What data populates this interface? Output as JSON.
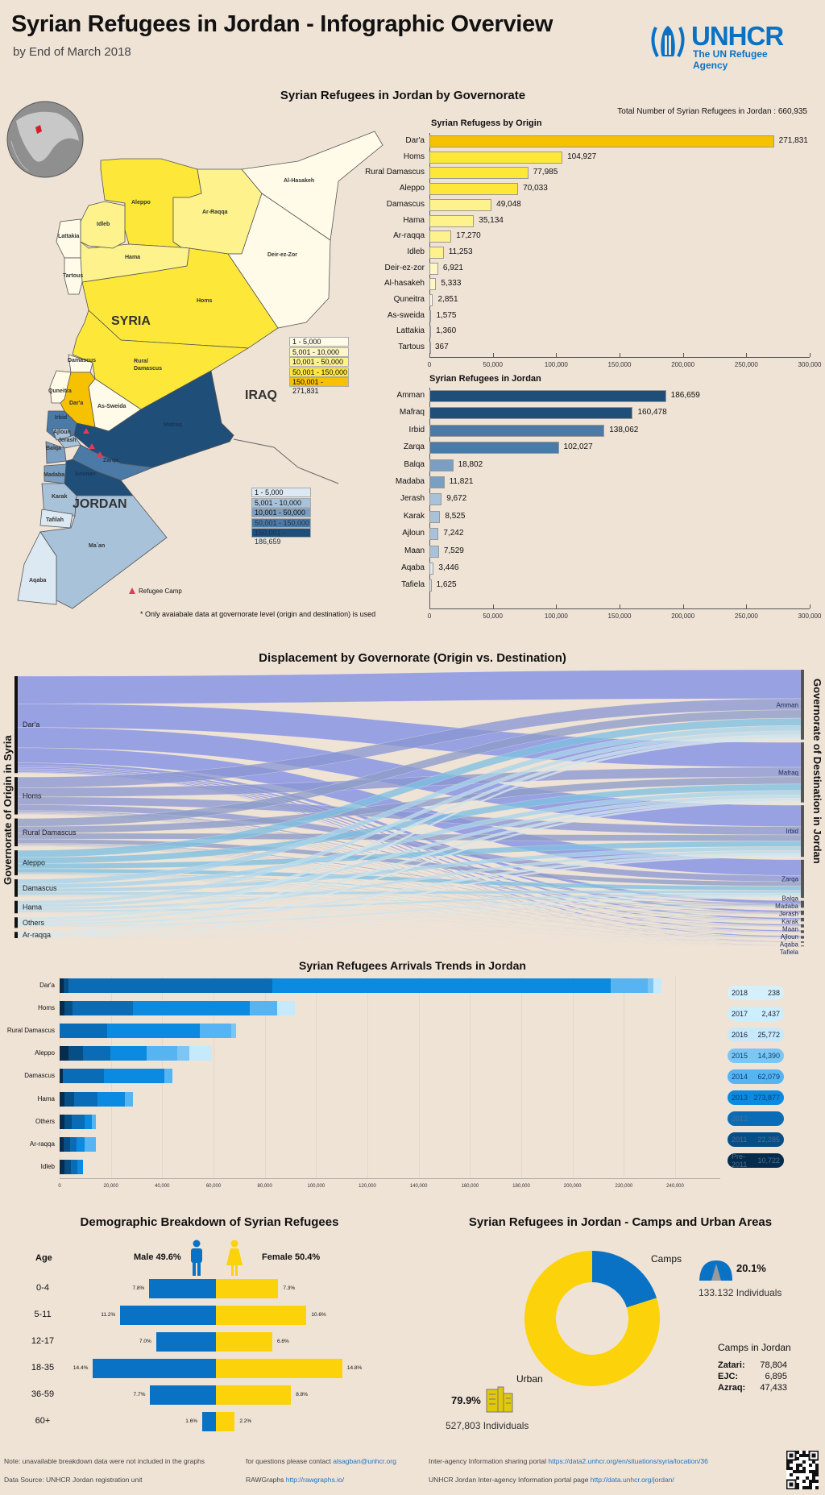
{
  "header": {
    "title": "Syrian Refugees in Jordan - Infographic Overview",
    "subtitle": "by End of March 2018"
  },
  "logo": {
    "name": "UNHCR",
    "tagline": "The UN Refugee Agency"
  },
  "governorate_section": {
    "title": "Syrian Refugees in Jordan by Governorate",
    "total_label": "Total Number of Syrian Refugees in Jordan : 660,935"
  },
  "map": {
    "labels": {
      "alhasakeh": "Al-Hasakeh",
      "aleppo": "Aleppo",
      "arraqqa": "Ar-Raqqa",
      "idleb": "Idleb",
      "lattakia": "Lattakia",
      "hama": "Hama",
      "tartous": "Tartous",
      "deir": "Deir-ez-Zor",
      "homs": "Homs",
      "syria": "SYRIA",
      "damascus": "Damascus",
      "rural1": "Rural",
      "rural2": "Damascus",
      "quneitra": "Quneitra",
      "dara": "Dar'a",
      "sweida": "As-Sweida",
      "iraq": "IRAQ",
      "mafraq": "Mafraq",
      "irbid": "Irbid",
      "ajloun": "Ajloun",
      "jerash": "Jerash",
      "balqa": "Balqa",
      "zarqa": "Zarqa",
      "madaba": "Madaba",
      "amman": "Amman",
      "karak": "Karak",
      "jordan": "JORDAN",
      "tafilah": "Tafilah",
      "maan": "Ma`an",
      "aqaba": "Aqaba"
    },
    "syria_legend": [
      {
        "label": "1 - 5,000",
        "color": "#fffbe8"
      },
      {
        "label": "5,001 - 10,000",
        "color": "#fef6c4"
      },
      {
        "label": "10,001 - 50,000",
        "color": "#fdf28c"
      },
      {
        "label": "50,001 - 150,000",
        "color": "#fde83a"
      },
      {
        "label": "150,001 - 271,831",
        "color": "#f6c200"
      }
    ],
    "jordan_legend": [
      {
        "label": "1 - 5,000",
        "color": "#dce8f2"
      },
      {
        "label": "5,001 - 10,000",
        "color": "#a8c2da"
      },
      {
        "label": "10,001 - 50,000",
        "color": "#7a9fc2"
      },
      {
        "label": "50,001 - 150,000",
        "color": "#4a7aa5"
      },
      {
        "label": "150,001 - 186,659",
        "color": "#1f4e79"
      }
    ],
    "camp_legend": "Refugee Camp",
    "camp_icon": "tent-icon",
    "footnote": "* Only avaiabale data at governorate level (origin and destination) is used"
  },
  "chart_data": [
    {
      "id": "origin",
      "type": "bar",
      "orientation": "horizontal",
      "title": "Syrian Refugess by Origin",
      "xlim": [
        0,
        300000
      ],
      "xticks": [
        0,
        50000,
        100000,
        150000,
        200000,
        250000,
        300000
      ],
      "categories": [
        "Dar'a",
        "Homs",
        "Rural Damascus",
        "Aleppo",
        "Damascus",
        "Hama",
        "Ar-raqqa",
        "Idleb",
        "Deir-ez-zor",
        "Al-hasakeh",
        "Quneitra",
        "As-sweida",
        "Lattakia",
        "Tartous"
      ],
      "values": [
        271831,
        104927,
        77985,
        70033,
        49048,
        35134,
        17270,
        11253,
        6921,
        5333,
        2851,
        1575,
        1360,
        367
      ],
      "value_labels": [
        "271,831",
        "104,927",
        "77,985",
        "70,033",
        "49,048",
        "35,134",
        "17,270",
        "11,253",
        "6,921",
        "5,333",
        "2,851",
        "1,575",
        "1,360",
        "367"
      ]
    },
    {
      "id": "jordan",
      "type": "bar",
      "orientation": "horizontal",
      "title": "Syrian Refugees in Jordan",
      "xlim": [
        0,
        300000
      ],
      "xticks": [
        0,
        50000,
        100000,
        150000,
        200000,
        250000,
        300000
      ],
      "categories": [
        "Amman",
        "Mafraq",
        "Irbid",
        "Zarqa",
        "Balqa",
        "Madaba",
        "Jerash",
        "Karak",
        "Ajloun",
        "Maan",
        "Aqaba",
        "Tafiela"
      ],
      "values": [
        186659,
        160478,
        138062,
        102027,
        18802,
        11821,
        9672,
        8525,
        7242,
        7529,
        3446,
        1625
      ],
      "value_labels": [
        "186,659",
        "160,478",
        "138,062",
        "102,027",
        "18,802",
        "11,821",
        "9,672",
        "8,525",
        "7,242",
        "7,529",
        "3,446",
        "1,625"
      ]
    },
    {
      "id": "sankey",
      "type": "sankey",
      "title": "Displacement by Governorate (Origin vs. Destination)",
      "left_axis_label": "Governorate of Origin in Syria",
      "right_axis_label": "Governorate of Destination in Jordan",
      "origin_nodes": [
        "Dar'a",
        "Homs",
        "Rural Damascus",
        "Aleppo",
        "Damascus",
        "Hama",
        "Others",
        "Ar-raqqa"
      ],
      "destination_nodes": [
        "Amman",
        "Mafraq",
        "Irbid",
        "Zarqa",
        "Balqa",
        "Madaba",
        "Jerash",
        "Karak",
        "Maan",
        "Ajloun",
        "Aqaba",
        "Tafiela"
      ]
    },
    {
      "id": "arrivals",
      "type": "bar",
      "stacked": true,
      "orientation": "horizontal",
      "title": "Syrian Refugees Arrivals Trends in Jordan",
      "xlim": [
        0,
        240000
      ],
      "xticks": [
        0,
        20000,
        40000,
        60000,
        80000,
        100000,
        120000,
        140000,
        160000,
        180000,
        200000,
        220000,
        240000
      ],
      "categories": [
        "Dar'a",
        "Homs",
        "Rural Damascus",
        "Aleppo",
        "Damascus",
        "Hama",
        "Others",
        "Ar-raqqa",
        "Idleb"
      ],
      "series": [
        {
          "name": "Pre-2011",
          "color": "#052c4c",
          "values": [
            1500,
            2000,
            0,
            3450,
            1250,
            1900,
            1900,
            1500,
            1900
          ]
        },
        {
          "name": "2011",
          "color": "#064e86",
          "values": [
            2000,
            3000,
            0,
            5650,
            0,
            3750,
            2800,
            2500,
            2500
          ]
        },
        {
          "name": "2012",
          "color": "#0a6cb6",
          "values": [
            79400,
            23500,
            18500,
            10700,
            16000,
            9100,
            5000,
            2500,
            2500
          ]
        },
        {
          "name": "2013",
          "color": "#0a8ae0",
          "values": [
            132000,
            45500,
            36100,
            14100,
            23500,
            10700,
            2800,
            3100,
            2200
          ]
        },
        {
          "name": "2014",
          "color": "#56b4f3",
          "values": [
            14400,
            10700,
            12200,
            11900,
            3150,
            3100,
            1600,
            4400,
            0
          ]
        },
        {
          "name": "2015",
          "color": "#7cc6f5",
          "values": [
            2200,
            0,
            1900,
            4700,
            0,
            0,
            0,
            0,
            0
          ]
        },
        {
          "name": "2016",
          "color": "#c6e9fb",
          "values": [
            3100,
            6900,
            0,
            8800,
            0,
            0,
            0,
            0,
            0
          ]
        },
        {
          "name": "2017",
          "color": "#cdeefc",
          "values": [
            0,
            0,
            0,
            0,
            0,
            0,
            0,
            0,
            0
          ]
        },
        {
          "name": "2018",
          "color": "#d6f0fb",
          "values": [
            0,
            0,
            0,
            0,
            0,
            0,
            0,
            0,
            0
          ]
        }
      ],
      "legend": [
        {
          "year": "2018",
          "value": "238",
          "color": "#d6f0fb"
        },
        {
          "year": "2017",
          "value": "2,437",
          "color": "#cdeefc"
        },
        {
          "year": "2016",
          "value": "25,772",
          "color": "#c6e9fb"
        },
        {
          "year": "2015",
          "value": "14,390",
          "color": "#7cc6f5"
        },
        {
          "year": "2014",
          "value": "62,079",
          "color": "#56b4f3"
        },
        {
          "year": "2013",
          "value": "273,877",
          "color": "#0a8ae0"
        },
        {
          "year": "2012",
          "value": "",
          "color": "#0a6cb6"
        },
        {
          "year": "2011",
          "value": "22,285",
          "color": "#064e86"
        },
        {
          "year": "Pre-2011",
          "value": "10,722",
          "color": "#052c4c"
        }
      ],
      "legend_placement": "right"
    },
    {
      "id": "demographics",
      "type": "bar",
      "subtype": "population-pyramid",
      "title": "Demographic Breakdown of Syrian Refugees",
      "unit": "%",
      "categories": [
        "0-4",
        "5-11",
        "12-17",
        "18-35",
        "36-59",
        "60+"
      ],
      "series": [
        {
          "name": "Male",
          "color": "#0a72c4",
          "values": [
            7.8,
            11.2,
            7.0,
            14.4,
            7.7,
            1.6
          ],
          "labels": [
            "7.8%",
            "11.2%",
            "7.0%",
            "14.4%",
            "7.7%",
            "1.6%"
          ]
        },
        {
          "name": "Female",
          "color": "#fcd20a",
          "values": [
            7.3,
            10.6,
            6.6,
            14.8,
            8.8,
            2.2
          ],
          "labels": [
            "7.3%",
            "10.6%",
            "6.6%",
            "14.8%",
            "8.8%",
            "2.2%"
          ]
        }
      ]
    },
    {
      "id": "camps",
      "type": "pie",
      "subtype": "donut",
      "title": "Syrian Refugees in Jordan - Camps and Urban Areas",
      "categories": [
        "Camps",
        "Urban"
      ],
      "values": [
        20.1,
        79.9
      ],
      "colors": [
        "#0a72c4",
        "#fcd20a"
      ]
    }
  ],
  "demographics": {
    "age_header": "Age",
    "male_label": "Male 49.6%",
    "female_label": "Female 50.4%"
  },
  "camps": {
    "camps_label": "Camps",
    "urban_label": "Urban",
    "camps_pct": "20.1%",
    "camps_individuals": "133.132 Individuals",
    "urban_pct": "79.9%",
    "urban_individuals": "527,803 Individuals",
    "list_title": "Camps in Jordan",
    "list": [
      {
        "name": "Zatari:",
        "value": "78,804"
      },
      {
        "name": "EJC:",
        "value": "6,895"
      },
      {
        "name": "Azraq:",
        "value": "47,433"
      }
    ]
  },
  "footer": {
    "note": "Note: unavailable breakdown data were not included in the graphs",
    "source": "Data Source: UNHCR Jordan registration unit",
    "contact_text": "for questions please contact ",
    "contact_email": "alsagban@unhcr.org",
    "rawgraphs_text": "RAWGraphs ",
    "rawgraphs_link": "http://rawgraphs.io/",
    "portal_text": "Inter-agency Information sharing portal ",
    "portal_link": "https://data2.unhcr.org/en/situations/syria/location/36",
    "jordan_portal_text": "UNHCR Jordan Inter-agency Information portal page ",
    "jordan_portal_link": "http://data.unhcr.org/jordan/"
  }
}
